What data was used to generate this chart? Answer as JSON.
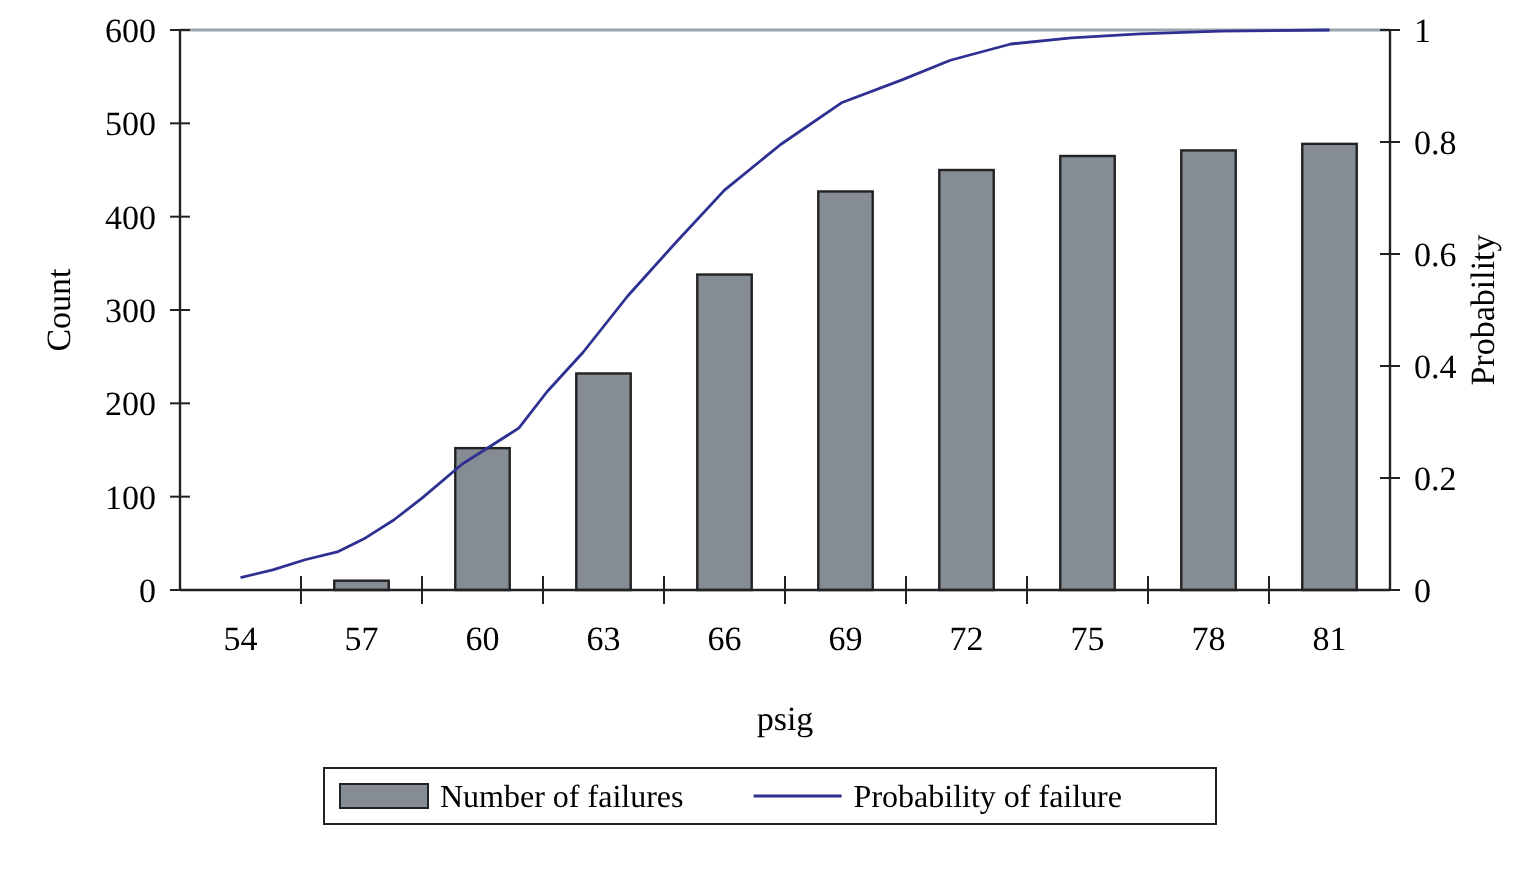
{
  "chart_data": {
    "type": "bar",
    "xlabel": "psig",
    "ylabel": "Count",
    "y2label": "Probability",
    "x": [
      54,
      57,
      60,
      63,
      66,
      69,
      72,
      75,
      78,
      81
    ],
    "xlim": [
      52.5,
      82.5
    ],
    "xticks": [
      54,
      57,
      60,
      63,
      66,
      69,
      72,
      75,
      78,
      81
    ],
    "ylim": [
      0,
      600
    ],
    "yticks": [
      0,
      100,
      200,
      300,
      400,
      500,
      600
    ],
    "y2lim": [
      0,
      1
    ],
    "y2ticks": [
      0,
      0.2,
      0.4,
      0.6,
      0.8,
      1
    ],
    "legend": "bottom",
    "grid": false,
    "series": [
      {
        "name": "Number of failures",
        "color": "#868c93",
        "values": [
          0,
          10,
          152,
          232,
          338,
          427,
          450,
          465,
          471,
          478
        ]
      },
      {
        "name": "Probability of failure",
        "type": "line",
        "axis": "y2",
        "color": "#2e3192",
        "x": [
          54,
          54.8,
          55.6,
          56.4,
          57.1,
          57.8,
          58.5,
          59.5,
          60.9,
          61.6,
          62.5,
          63.6,
          64.8,
          66,
          67.4,
          68.9,
          70.4,
          71.6,
          73.1,
          74.6,
          76.3,
          78.3,
          81
        ],
        "values": [
          0.022,
          0.036,
          0.054,
          0.068,
          0.093,
          0.125,
          0.164,
          0.225,
          0.289,
          0.354,
          0.425,
          0.525,
          0.621,
          0.714,
          0.796,
          0.87,
          0.911,
          0.946,
          0.975,
          0.986,
          0.993,
          0.998,
          1
        ]
      }
    ]
  }
}
